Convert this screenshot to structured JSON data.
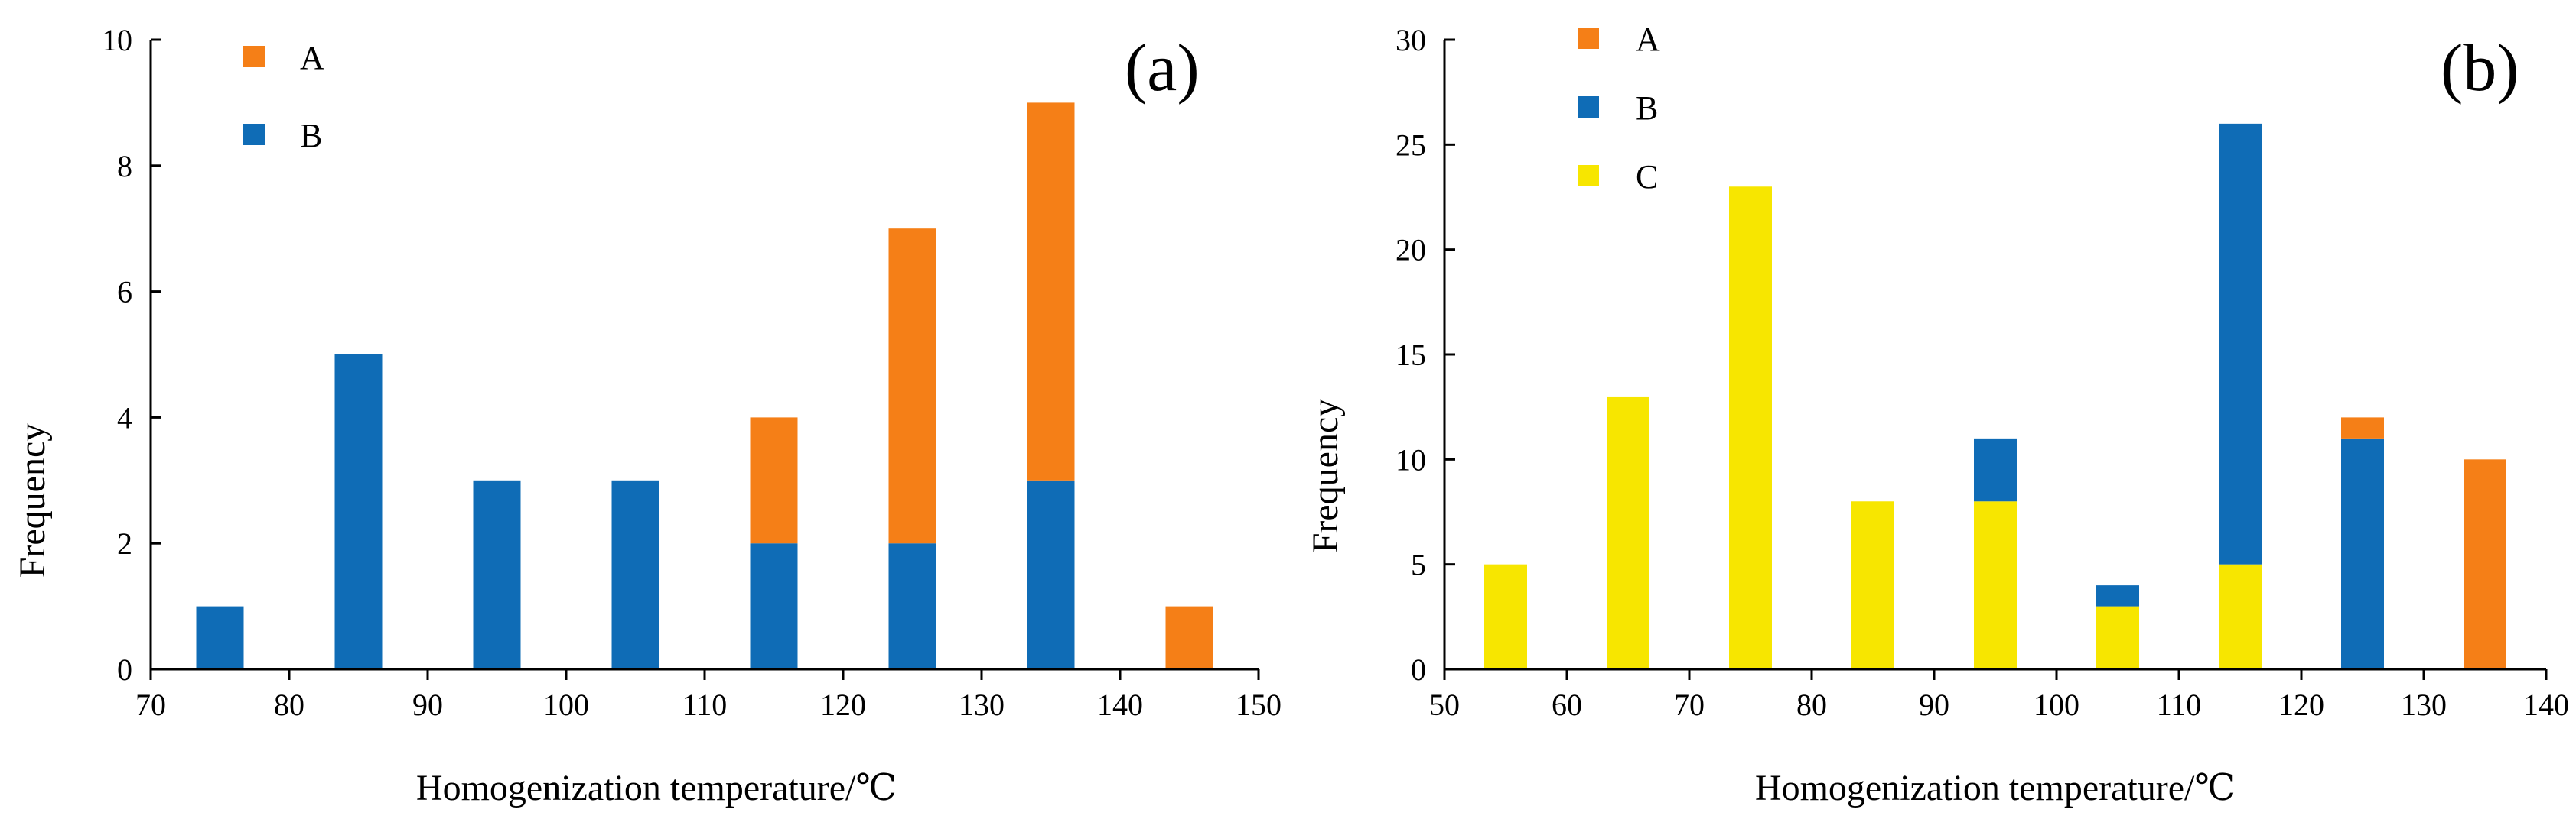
{
  "chart_data": [
    {
      "type": "bar",
      "stacked": true,
      "panel_label": "(a)",
      "xlabel": "Homogenization temperature/℃",
      "ylabel": "Frequency",
      "xlim": [
        70,
        150
      ],
      "ylim": [
        0,
        10
      ],
      "xticks": [
        70,
        80,
        90,
        100,
        110,
        120,
        130,
        140,
        150
      ],
      "yticks": [
        0,
        2,
        4,
        6,
        8,
        10
      ],
      "x": [
        75,
        85,
        95,
        105,
        115,
        125,
        135,
        145
      ],
      "series": [
        {
          "name": "B",
          "color": "#0f6cb6",
          "values": [
            1,
            5,
            3,
            3,
            2,
            2,
            3,
            0
          ]
        },
        {
          "name": "A",
          "color": "#f57f17",
          "values": [
            0,
            0,
            0,
            0,
            2,
            5,
            6,
            1
          ]
        }
      ],
      "legend": [
        {
          "name": "A",
          "color": "#f57f17"
        },
        {
          "name": "B",
          "color": "#0f6cb6"
        }
      ],
      "legend_position": "top-left"
    },
    {
      "type": "bar",
      "stacked": true,
      "panel_label": "(b)",
      "xlabel": "Homogenization temperature/℃",
      "ylabel": "Frequency",
      "xlim": [
        50,
        140
      ],
      "ylim": [
        0,
        30
      ],
      "xticks": [
        50,
        60,
        70,
        80,
        90,
        100,
        110,
        120,
        130,
        140
      ],
      "yticks": [
        0,
        5,
        10,
        15,
        20,
        25,
        30
      ],
      "x": [
        55,
        65,
        75,
        85,
        95,
        105,
        115,
        125,
        135
      ],
      "series": [
        {
          "name": "C",
          "color": "#f7e600",
          "values": [
            5,
            13,
            23,
            8,
            8,
            3,
            5,
            0,
            0
          ]
        },
        {
          "name": "B",
          "color": "#0f6cb6",
          "values": [
            0,
            0,
            0,
            0,
            3,
            1,
            21,
            11,
            0
          ]
        },
        {
          "name": "A",
          "color": "#f57f17",
          "values": [
            0,
            0,
            0,
            0,
            0,
            0,
            0,
            1,
            10
          ]
        }
      ],
      "legend": [
        {
          "name": "A",
          "color": "#f57f17"
        },
        {
          "name": "B",
          "color": "#0f6cb6"
        },
        {
          "name": "C",
          "color": "#f7e600"
        }
      ],
      "legend_position": "top-left"
    }
  ]
}
